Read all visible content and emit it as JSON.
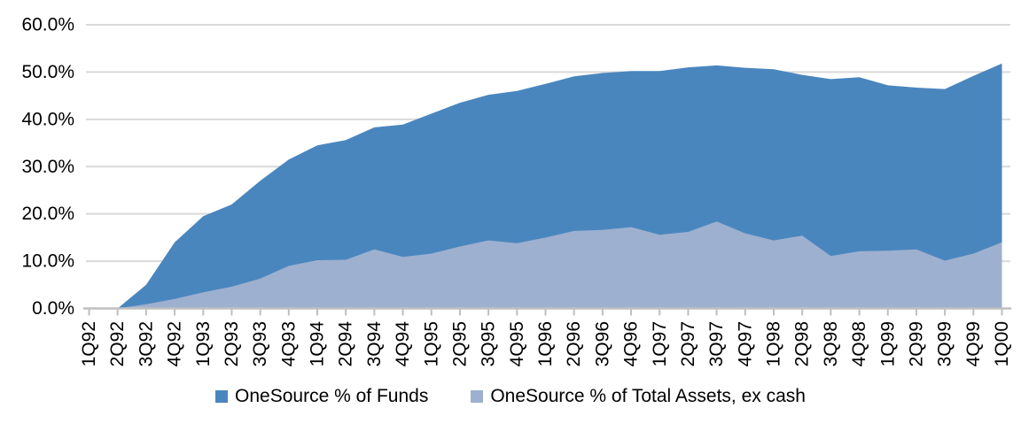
{
  "colors": {
    "series_funds": "#4A86BE",
    "series_assets": "#9DB0CF",
    "gridline": "#D9D9D9",
    "axis": "#BFBFBF",
    "text": "#000000",
    "background": "#FFFFFF"
  },
  "chart_data": {
    "type": "area",
    "title": "",
    "xlabel": "",
    "ylabel": "",
    "grid": "horizontal",
    "legend_position": "bottom",
    "ylim": [
      0,
      60
    ],
    "ytick_labels": [
      "0.0%",
      "10.0%",
      "20.0%",
      "30.0%",
      "40.0%",
      "50.0%",
      "60.0%"
    ],
    "categories": [
      "1Q92",
      "2Q92",
      "3Q92",
      "4Q92",
      "1Q93",
      "2Q93",
      "3Q93",
      "4Q93",
      "1Q94",
      "2Q94",
      "3Q94",
      "4Q94",
      "1Q95",
      "2Q95",
      "3Q95",
      "4Q95",
      "1Q96",
      "2Q96",
      "3Q96",
      "4Q96",
      "1Q97",
      "2Q97",
      "3Q97",
      "4Q97",
      "1Q98",
      "2Q98",
      "3Q98",
      "4Q98",
      "1Q99",
      "2Q99",
      "3Q99",
      "4Q99",
      "1Q00"
    ],
    "series": [
      {
        "name": "OneSource % of Funds",
        "color": "#4A86BE",
        "values": [
          0.0,
          0.0,
          5.0,
          14.0,
          19.5,
          22.0,
          27.0,
          31.5,
          34.5,
          35.6,
          38.3,
          38.9,
          41.2,
          43.5,
          45.2,
          46.0,
          47.5,
          49.1,
          49.8,
          50.2,
          50.2,
          51.0,
          51.4,
          50.9,
          50.6,
          49.4,
          48.5,
          48.9,
          47.2,
          46.7,
          46.4,
          49.2,
          51.8
        ]
      },
      {
        "name": "OneSource % of Total Assets, ex cash",
        "color": "#9DB0CF",
        "values": [
          0.0,
          0.0,
          0.9,
          2.0,
          3.4,
          4.6,
          6.3,
          9.0,
          10.2,
          10.3,
          12.5,
          10.9,
          11.6,
          13.1,
          14.4,
          13.8,
          15.0,
          16.4,
          16.6,
          17.2,
          15.6,
          16.2,
          18.4,
          15.9,
          14.4,
          15.4,
          11.1,
          12.1,
          12.2,
          12.5,
          10.1,
          11.6,
          14.0
        ]
      }
    ]
  }
}
